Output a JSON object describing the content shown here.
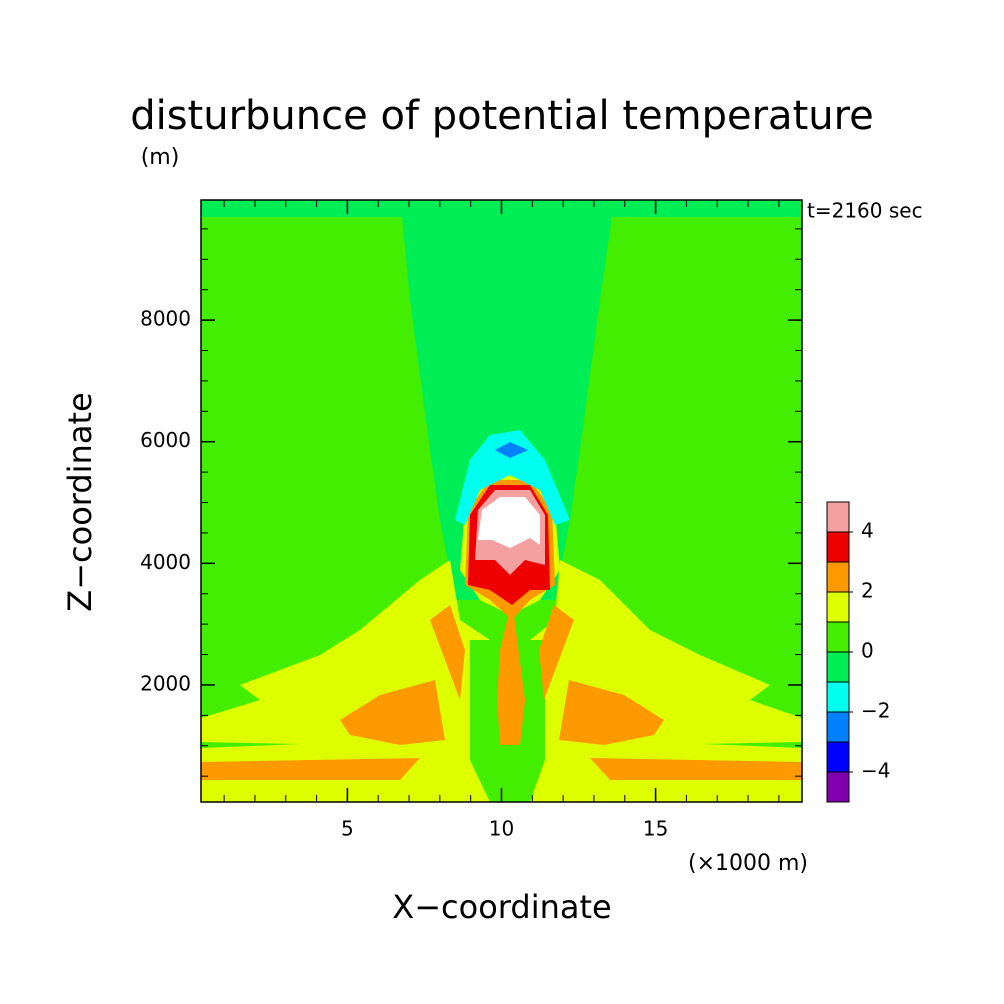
{
  "chart_data": {
    "type": "contour",
    "title": "disturbunce of potential temperature",
    "y_unit": "(m)",
    "x_unit": "(×1000 m)",
    "time_label": "t=2160 sec",
    "xlabel": "X−coordinate",
    "ylabel": "Z−coordinate",
    "xlim": [
      0.25,
      19.75
    ],
    "ylim": [
      75,
      9975
    ],
    "xticks": [
      5,
      10,
      15
    ],
    "yticks": [
      2000,
      4000,
      6000,
      8000
    ],
    "x_minor_step": 1,
    "y_minor_step": 500,
    "levels": [
      -5,
      -4,
      -3,
      -2,
      -1,
      0,
      1,
      2,
      3,
      4,
      5
    ],
    "colors": [
      "#8000b0",
      "#0000ff",
      "#0080ff",
      "#00ffee",
      "#00ee55",
      "#44ee00",
      "#ddff00",
      "#ff9900",
      "#ee0000",
      "#f4a0a0"
    ],
    "colorbar_ticks": [
      {
        "value": -4,
        "label": "−4"
      },
      {
        "value": -2,
        "label": "−2"
      },
      0,
      2,
      4
    ]
  }
}
